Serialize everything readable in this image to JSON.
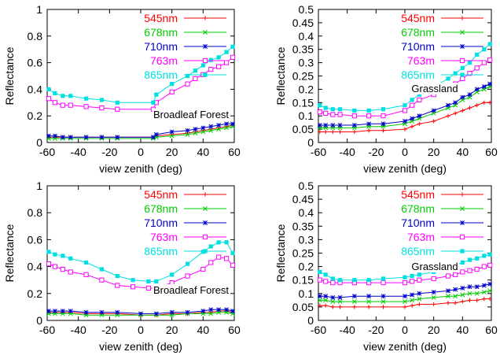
{
  "chart_data": [
    {
      "type": "line",
      "title": "",
      "annotation": "Broadleaf Forest",
      "xlabel": "view zenith (deg)",
      "ylabel": "Reflectance",
      "xlim": [
        -60,
        60
      ],
      "ylim": [
        0,
        1
      ],
      "xticks": [
        "-60",
        "-40",
        "-20",
        "0",
        "20",
        "40",
        "60"
      ],
      "yticks": [
        "0",
        "0.2",
        "0.4",
        "0.6",
        "0.8",
        "1"
      ],
      "grid": false,
      "legend": "top-right",
      "series": [
        {
          "name": "545nm",
          "color": "#ff0000",
          "marker": "plus",
          "x": [
            -59,
            -55,
            -50,
            -45,
            -35,
            -25,
            -15,
            8,
            10,
            20,
            30,
            35,
            40,
            45,
            50,
            55,
            59
          ],
          "y": [
            0.04,
            0.04,
            0.04,
            0.04,
            0.04,
            0.04,
            0.04,
            0.04,
            0.05,
            0.06,
            0.07,
            0.08,
            0.09,
            0.1,
            0.11,
            0.12,
            0.13
          ]
        },
        {
          "name": "678nm",
          "color": "#00cc00",
          "marker": "cross",
          "x": [
            -59,
            -55,
            -50,
            -45,
            -35,
            -25,
            -15,
            8,
            10,
            20,
            30,
            35,
            40,
            45,
            50,
            55,
            59
          ],
          "y": [
            0.03,
            0.03,
            0.03,
            0.03,
            0.03,
            0.03,
            0.03,
            0.03,
            0.04,
            0.05,
            0.06,
            0.07,
            0.08,
            0.09,
            0.1,
            0.11,
            0.12
          ]
        },
        {
          "name": "710nm",
          "color": "#0000cc",
          "marker": "star",
          "x": [
            -59,
            -55,
            -50,
            -45,
            -35,
            -25,
            -15,
            8,
            10,
            20,
            30,
            35,
            40,
            45,
            50,
            55,
            59
          ],
          "y": [
            0.05,
            0.05,
            0.04,
            0.04,
            0.04,
            0.04,
            0.04,
            0.04,
            0.06,
            0.08,
            0.09,
            0.1,
            0.11,
            0.12,
            0.13,
            0.14,
            0.14
          ]
        },
        {
          "name": "763m",
          "color": "#ff00ff",
          "marker": "open-square",
          "x": [
            -59,
            -55,
            -50,
            -45,
            -35,
            -25,
            -15,
            8,
            10,
            20,
            30,
            35,
            40,
            45,
            50,
            55,
            59
          ],
          "y": [
            0.33,
            0.3,
            0.28,
            0.28,
            0.27,
            0.26,
            0.25,
            0.25,
            0.3,
            0.38,
            0.44,
            0.48,
            0.51,
            0.55,
            0.57,
            0.6,
            0.64
          ]
        },
        {
          "name": "865nm",
          "color": "#00e0e0",
          "marker": "filled-square",
          "x": [
            -59,
            -55,
            -50,
            -45,
            -35,
            -25,
            -15,
            8,
            10,
            20,
            30,
            35,
            40,
            45,
            50,
            55,
            59
          ],
          "y": [
            0.4,
            0.37,
            0.35,
            0.35,
            0.33,
            0.32,
            0.3,
            0.3,
            0.36,
            0.44,
            0.5,
            0.54,
            0.58,
            0.62,
            0.64,
            0.68,
            0.72
          ]
        }
      ]
    },
    {
      "type": "line",
      "title": "",
      "annotation": "Grassland",
      "xlabel": "view zenith (deg)",
      "ylabel": "Reflectance",
      "xlim": [
        -60,
        60
      ],
      "ylim": [
        0,
        0.5
      ],
      "xticks": [
        "-60",
        "-40",
        "-20",
        "0",
        "20",
        "40",
        "60"
      ],
      "yticks": [
        "0",
        "0.05",
        "0.1",
        "0.15",
        "0.2",
        "0.25",
        "0.3",
        "0.35",
        "0.4",
        "0.45",
        "0.5"
      ],
      "grid": false,
      "legend": "top-right",
      "series": [
        {
          "name": "545nm",
          "color": "#ff0000",
          "marker": "plus",
          "x": [
            -59,
            -55,
            -50,
            -45,
            -35,
            -25,
            -15,
            0,
            5,
            10,
            20,
            30,
            35,
            40,
            45,
            50,
            55,
            59
          ],
          "y": [
            0.04,
            0.04,
            0.04,
            0.04,
            0.04,
            0.045,
            0.045,
            0.05,
            0.06,
            0.07,
            0.08,
            0.1,
            0.11,
            0.12,
            0.13,
            0.14,
            0.15,
            0.15
          ]
        },
        {
          "name": "678nm",
          "color": "#00cc00",
          "marker": "cross",
          "x": [
            -59,
            -55,
            -50,
            -45,
            -35,
            -25,
            -15,
            0,
            5,
            10,
            20,
            30,
            35,
            40,
            45,
            50,
            55,
            59
          ],
          "y": [
            0.055,
            0.055,
            0.055,
            0.055,
            0.055,
            0.06,
            0.06,
            0.07,
            0.08,
            0.09,
            0.11,
            0.13,
            0.14,
            0.16,
            0.17,
            0.19,
            0.2,
            0.21
          ]
        },
        {
          "name": "710nm",
          "color": "#0000cc",
          "marker": "star",
          "x": [
            -59,
            -55,
            -50,
            -45,
            -35,
            -25,
            -15,
            0,
            5,
            10,
            20,
            30,
            35,
            40,
            45,
            50,
            55,
            59
          ],
          "y": [
            0.065,
            0.065,
            0.065,
            0.065,
            0.065,
            0.07,
            0.07,
            0.08,
            0.09,
            0.1,
            0.12,
            0.14,
            0.15,
            0.17,
            0.18,
            0.2,
            0.21,
            0.22
          ]
        },
        {
          "name": "763m",
          "color": "#ff00ff",
          "marker": "open-square",
          "x": [
            -59,
            -55,
            -50,
            -45,
            -35,
            -25,
            -15,
            0,
            5,
            10,
            20,
            30,
            35,
            40,
            45,
            50,
            55,
            59
          ],
          "y": [
            0.115,
            0.11,
            0.105,
            0.105,
            0.1,
            0.1,
            0.1,
            0.12,
            0.14,
            0.16,
            0.18,
            0.2,
            0.22,
            0.24,
            0.26,
            0.28,
            0.3,
            0.31
          ]
        },
        {
          "name": "865nm",
          "color": "#00e0e0",
          "marker": "filled-square",
          "x": [
            -59,
            -55,
            -50,
            -45,
            -35,
            -25,
            -15,
            0,
            5,
            10,
            20,
            30,
            35,
            40,
            45,
            50,
            55,
            59
          ],
          "y": [
            0.14,
            0.13,
            0.125,
            0.125,
            0.12,
            0.12,
            0.125,
            0.14,
            0.16,
            0.18,
            0.21,
            0.24,
            0.26,
            0.28,
            0.3,
            0.33,
            0.35,
            0.37
          ]
        }
      ]
    },
    {
      "type": "line",
      "title": "",
      "annotation": "Broadleaf Forest",
      "xlabel": "view zenith (deg)",
      "ylabel": "Reflectance",
      "xlim": [
        -60,
        60
      ],
      "ylim": [
        0,
        1
      ],
      "xticks": [
        "-60",
        "-40",
        "-20",
        "0",
        "20",
        "40",
        "60"
      ],
      "yticks": [
        "0",
        "0.2",
        "0.4",
        "0.6",
        "0.8",
        "1"
      ],
      "grid": false,
      "legend": "top-right",
      "series": [
        {
          "name": "545nm",
          "color": "#ff0000",
          "marker": "plus",
          "x": [
            -59,
            -55,
            -50,
            -45,
            -35,
            -25,
            -15,
            0,
            10,
            20,
            30,
            40,
            45,
            50,
            55,
            59
          ],
          "y": [
            0.06,
            0.06,
            0.06,
            0.06,
            0.05,
            0.05,
            0.05,
            0.04,
            0.04,
            0.05,
            0.05,
            0.06,
            0.06,
            0.07,
            0.07,
            0.06
          ]
        },
        {
          "name": "678nm",
          "color": "#00cc00",
          "marker": "cross",
          "x": [
            -59,
            -55,
            -50,
            -45,
            -35,
            -25,
            -15,
            0,
            10,
            20,
            30,
            40,
            45,
            50,
            55,
            59
          ],
          "y": [
            0.05,
            0.05,
            0.05,
            0.05,
            0.04,
            0.04,
            0.04,
            0.04,
            0.04,
            0.04,
            0.05,
            0.05,
            0.05,
            0.06,
            0.06,
            0.05
          ]
        },
        {
          "name": "710nm",
          "color": "#0000cc",
          "marker": "star",
          "x": [
            -59,
            -55,
            -50,
            -45,
            -35,
            -25,
            -15,
            0,
            10,
            20,
            30,
            40,
            45,
            50,
            55,
            59
          ],
          "y": [
            0.07,
            0.07,
            0.07,
            0.07,
            0.06,
            0.06,
            0.06,
            0.05,
            0.05,
            0.06,
            0.06,
            0.07,
            0.08,
            0.08,
            0.08,
            0.07
          ]
        },
        {
          "name": "763m",
          "color": "#ff00ff",
          "marker": "open-square",
          "x": [
            -59,
            -55,
            -50,
            -45,
            -35,
            -25,
            -15,
            -5,
            5,
            10,
            20,
            30,
            40,
            45,
            50,
            55,
            59
          ],
          "y": [
            0.42,
            0.4,
            0.38,
            0.36,
            0.34,
            0.3,
            0.26,
            0.25,
            0.24,
            0.24,
            0.28,
            0.33,
            0.38,
            0.43,
            0.47,
            0.46,
            0.41
          ]
        },
        {
          "name": "865nm",
          "color": "#00e0e0",
          "marker": "filled-square",
          "x": [
            -59,
            -55,
            -50,
            -45,
            -35,
            -25,
            -15,
            -5,
            5,
            10,
            20,
            30,
            40,
            45,
            50,
            55,
            59
          ],
          "y": [
            0.51,
            0.49,
            0.48,
            0.46,
            0.43,
            0.38,
            0.33,
            0.3,
            0.29,
            0.29,
            0.34,
            0.42,
            0.51,
            0.55,
            0.58,
            0.58,
            0.5
          ]
        }
      ]
    },
    {
      "type": "line",
      "title": "",
      "annotation": "Grassland",
      "xlabel": "view zenith (deg)",
      "ylabel": "Reflectance",
      "xlim": [
        -60,
        60
      ],
      "ylim": [
        0,
        0.5
      ],
      "xticks": [
        "-60",
        "-40",
        "-20",
        "0",
        "20",
        "40",
        "60"
      ],
      "yticks": [
        "0",
        "0.05",
        "0.1",
        "0.15",
        "0.2",
        "0.25",
        "0.3",
        "0.35",
        "0.4",
        "0.45",
        "0.5"
      ],
      "grid": false,
      "legend": "top-right",
      "series": [
        {
          "name": "545nm",
          "color": "#ff0000",
          "marker": "plus",
          "x": [
            -59,
            -55,
            -50,
            -45,
            -35,
            -25,
            -15,
            0,
            5,
            10,
            20,
            30,
            35,
            40,
            45,
            50,
            55,
            59
          ],
          "y": [
            0.055,
            0.055,
            0.05,
            0.05,
            0.05,
            0.05,
            0.05,
            0.05,
            0.055,
            0.06,
            0.06,
            0.065,
            0.065,
            0.07,
            0.075,
            0.075,
            0.08,
            0.08
          ]
        },
        {
          "name": "678nm",
          "color": "#00cc00",
          "marker": "cross",
          "x": [
            -59,
            -55,
            -50,
            -45,
            -35,
            -25,
            -15,
            0,
            5,
            10,
            20,
            30,
            35,
            40,
            45,
            50,
            55,
            59
          ],
          "y": [
            0.075,
            0.075,
            0.07,
            0.07,
            0.07,
            0.07,
            0.07,
            0.07,
            0.075,
            0.08,
            0.085,
            0.09,
            0.09,
            0.095,
            0.1,
            0.1,
            0.105,
            0.11
          ]
        },
        {
          "name": "710nm",
          "color": "#0000cc",
          "marker": "star",
          "x": [
            -59,
            -55,
            -50,
            -45,
            -35,
            -25,
            -15,
            0,
            5,
            10,
            20,
            30,
            35,
            40,
            45,
            50,
            55,
            59
          ],
          "y": [
            0.09,
            0.09,
            0.085,
            0.085,
            0.09,
            0.09,
            0.09,
            0.09,
            0.095,
            0.1,
            0.105,
            0.11,
            0.115,
            0.12,
            0.125,
            0.125,
            0.13,
            0.135
          ]
        },
        {
          "name": "763m",
          "color": "#ff00ff",
          "marker": "open-square",
          "x": [
            -59,
            -55,
            -50,
            -45,
            -35,
            -25,
            -15,
            0,
            5,
            10,
            20,
            30,
            35,
            40,
            45,
            50,
            55,
            59
          ],
          "y": [
            0.15,
            0.145,
            0.14,
            0.14,
            0.14,
            0.14,
            0.14,
            0.14,
            0.145,
            0.15,
            0.155,
            0.165,
            0.17,
            0.18,
            0.185,
            0.19,
            0.2,
            0.205
          ]
        },
        {
          "name": "865nm",
          "color": "#00e0e0",
          "marker": "filled-square",
          "x": [
            -59,
            -55,
            -50,
            -45,
            -35,
            -25,
            -15,
            0,
            5,
            10,
            20,
            30,
            35,
            40,
            45,
            50,
            55,
            59
          ],
          "y": [
            0.18,
            0.17,
            0.155,
            0.15,
            0.15,
            0.15,
            0.155,
            0.16,
            0.165,
            0.17,
            0.18,
            0.195,
            0.205,
            0.215,
            0.225,
            0.23,
            0.24,
            0.245
          ]
        }
      ]
    }
  ]
}
